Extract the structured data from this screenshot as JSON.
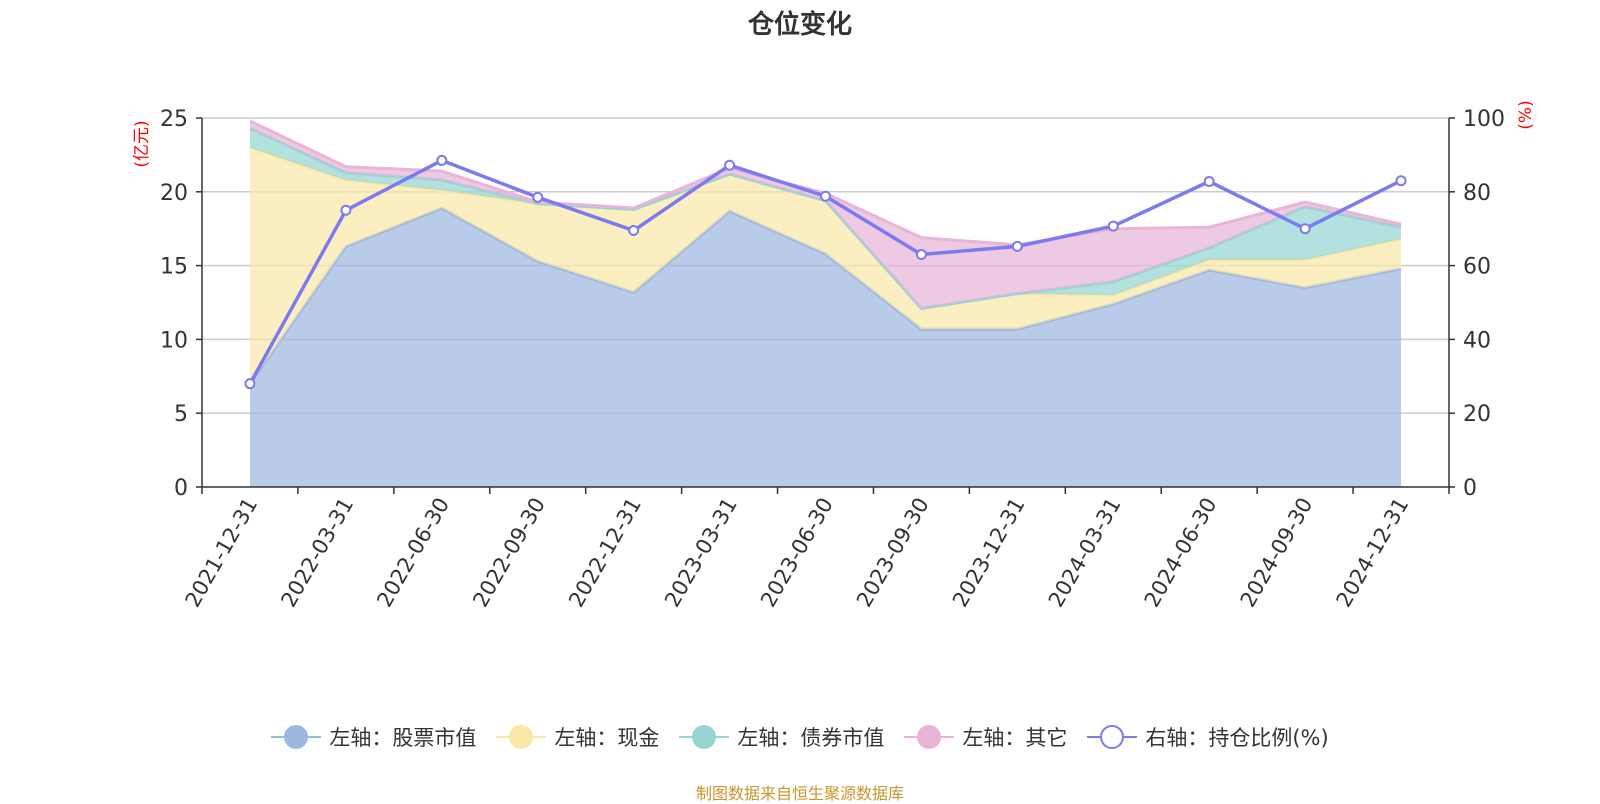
{
  "chart_data": {
    "type": "area",
    "title": "仓位变化",
    "categories": [
      "2021-12-31",
      "2022-03-31",
      "2022-06-30",
      "2022-09-30",
      "2022-12-31",
      "2023-03-31",
      "2023-06-30",
      "2023-09-30",
      "2023-12-31",
      "2024-03-31",
      "2024-06-30",
      "2024-09-30",
      "2024-12-31"
    ],
    "y_left": {
      "label": "(亿元)",
      "ticks": [
        0,
        5,
        10,
        15,
        20,
        25
      ],
      "range": [
        0,
        25
      ]
    },
    "y_right": {
      "label": "(%)",
      "ticks": [
        0,
        20,
        40,
        60,
        80,
        100
      ],
      "range": [
        0,
        100
      ]
    },
    "grid": true,
    "legend_position": "bottom",
    "stacked": true,
    "series": [
      {
        "name": "左轴：股票市值",
        "axis": "left",
        "type": "area",
        "color": "#9cb7e0",
        "values": [
          7.0,
          16.3,
          18.9,
          15.3,
          13.2,
          18.7,
          15.8,
          10.7,
          10.7,
          12.4,
          14.7,
          13.5,
          14.8
        ]
      },
      {
        "name": "左轴：现金",
        "axis": "left",
        "type": "area",
        "color": "#f9e8a8",
        "values": [
          16.0,
          4.5,
          1.2,
          3.9,
          5.6,
          2.5,
          3.6,
          1.4,
          2.4,
          0.6,
          0.7,
          1.9,
          2.0
        ]
      },
      {
        "name": "左轴：债券市值",
        "axis": "left",
        "type": "area",
        "color": "#96d5d3",
        "values": [
          1.3,
          0.5,
          0.7,
          0.0,
          0.0,
          0.0,
          0.0,
          0.0,
          0.0,
          0.9,
          0.8,
          3.6,
          0.8
        ]
      },
      {
        "name": "左轴：其它",
        "axis": "left",
        "type": "area",
        "color": "#e8b4d8",
        "values": [
          0.5,
          0.4,
          0.6,
          0.1,
          0.1,
          0.4,
          0.5,
          4.8,
          3.3,
          3.6,
          1.4,
          0.3,
          0.2
        ]
      },
      {
        "name": "右轴：持仓比例(%)",
        "axis": "right",
        "type": "line",
        "color": "#7b7bef",
        "values": [
          28.0,
          75.0,
          88.5,
          78.5,
          69.5,
          87.2,
          78.8,
          63.0,
          65.2,
          70.7,
          82.8,
          70.0,
          83.0
        ]
      }
    ]
  },
  "source_note": "制图数据来自恒生聚源数据库"
}
